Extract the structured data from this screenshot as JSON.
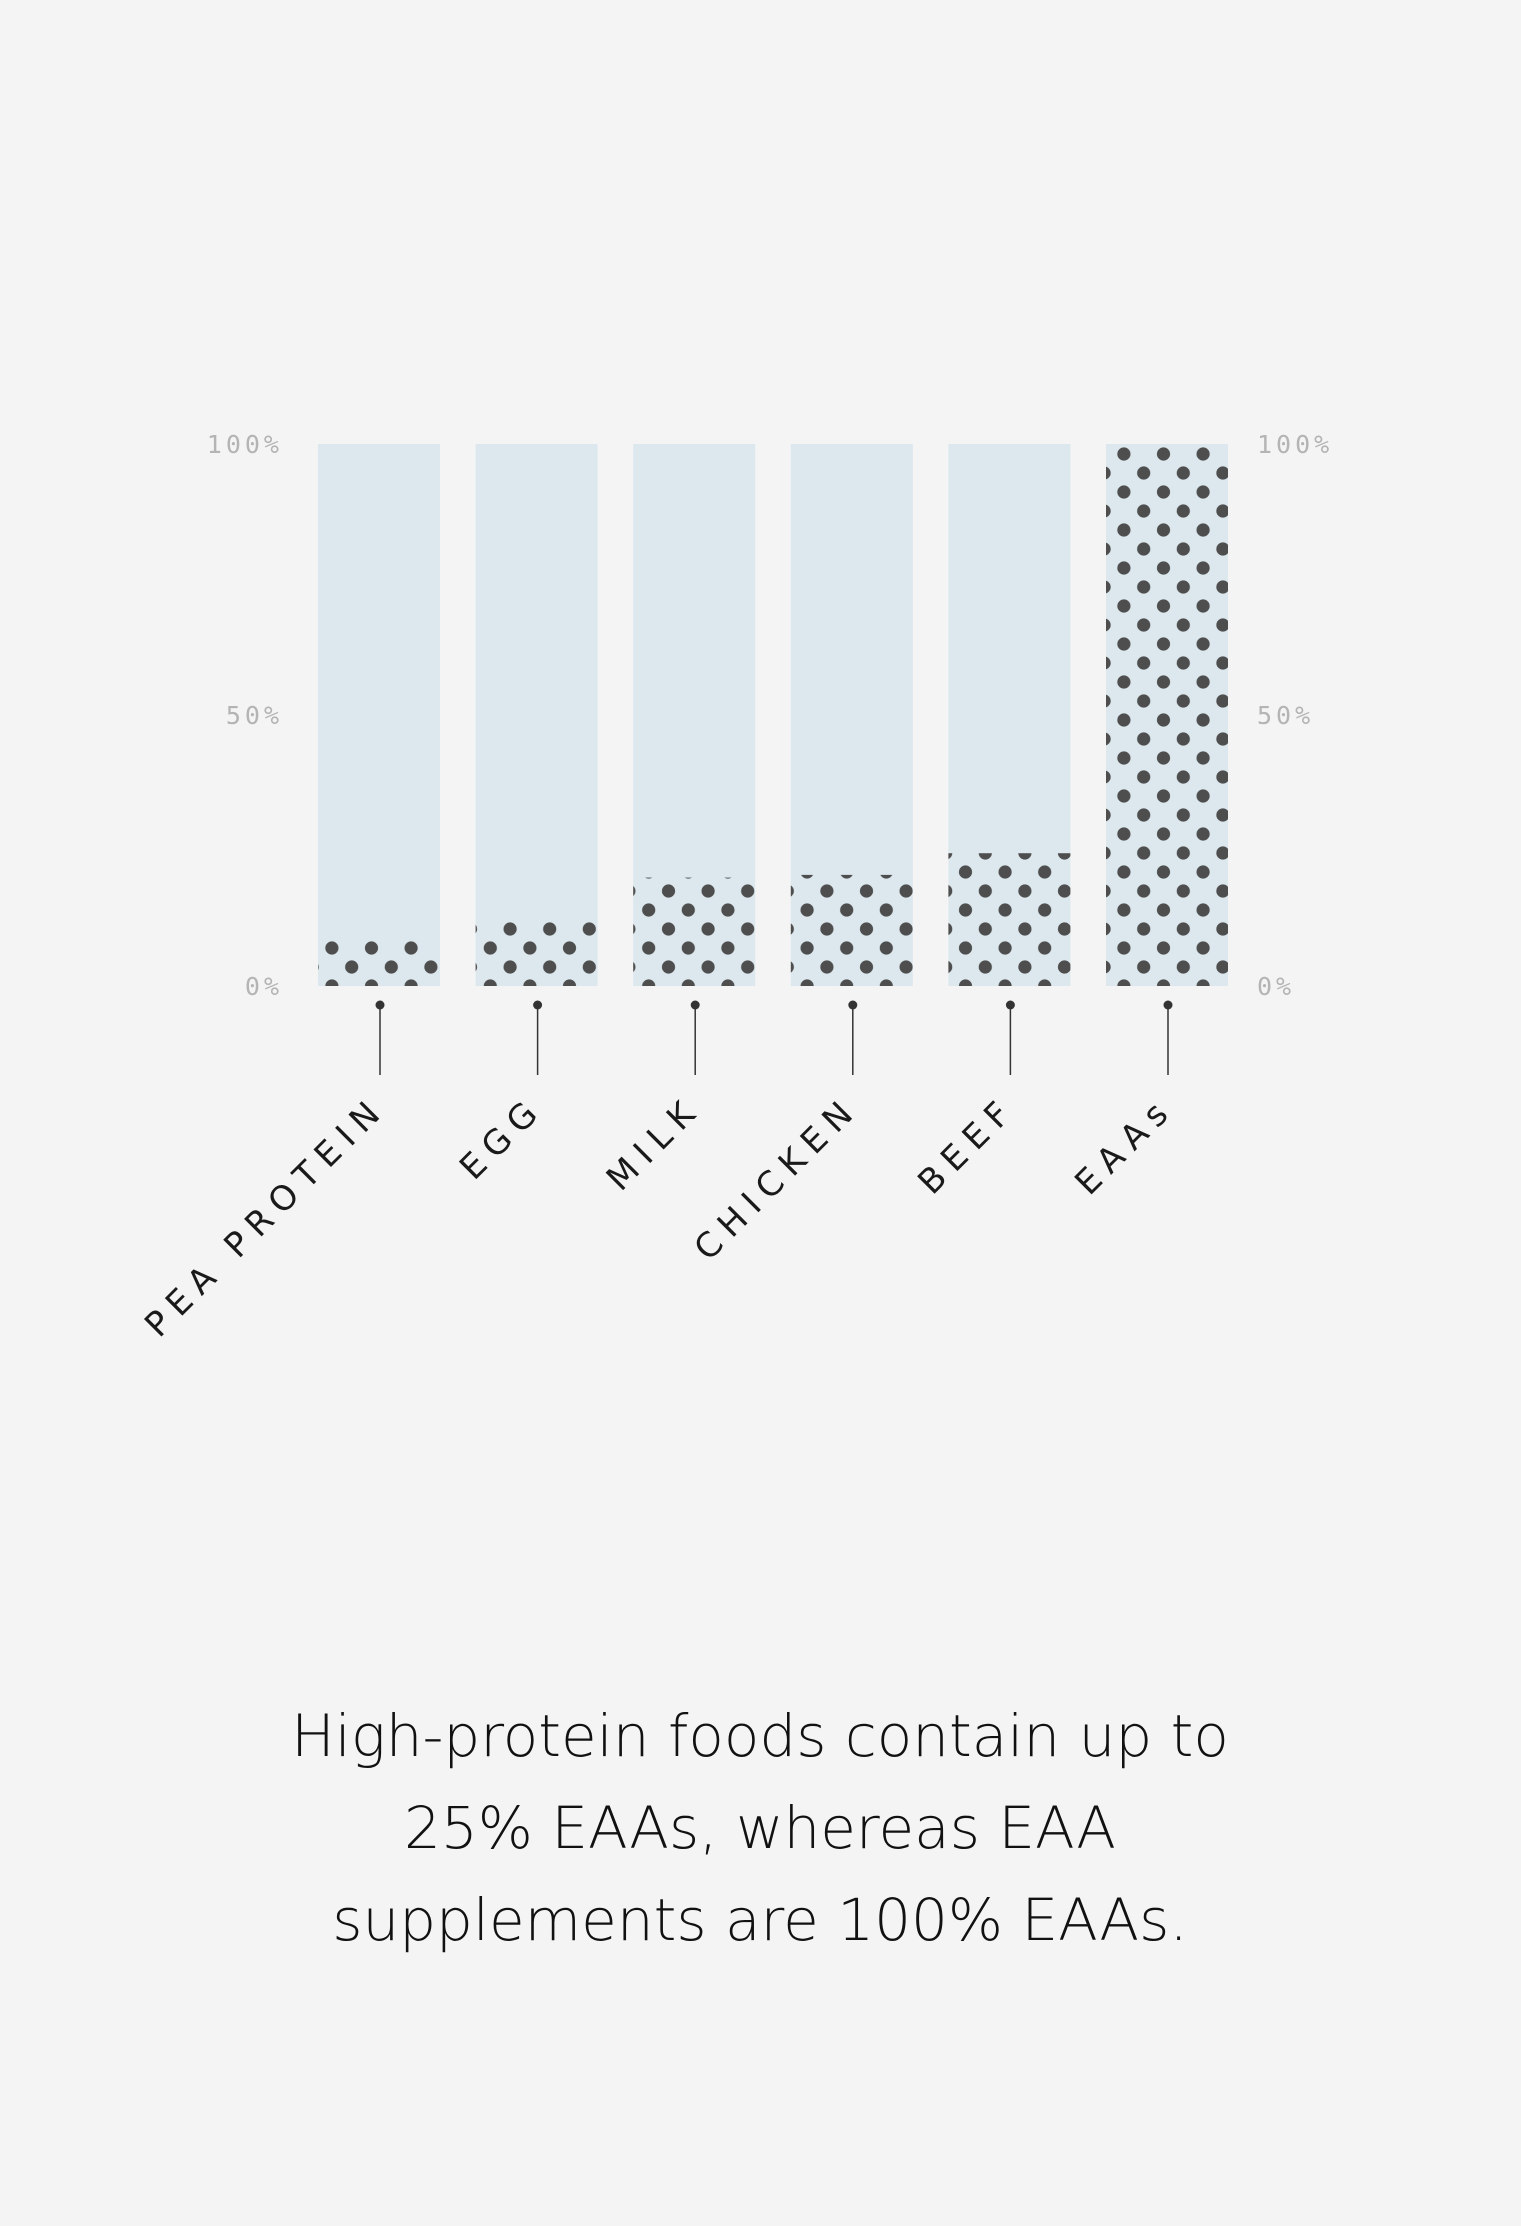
{
  "chart_data": {
    "type": "bar",
    "categories": [
      "PEA PROTEIN",
      "EGG",
      "MILK",
      "CHICKEN",
      "BEEF",
      "EAAs"
    ],
    "values": [
      9,
      12,
      20,
      20.5,
      24.5,
      100
    ],
    "unit": "%",
    "ylim": [
      0,
      100
    ],
    "yticks_left": [
      "0%",
      "50%",
      "100%"
    ],
    "yticks_right": [
      "0%",
      "50%",
      "100%"
    ],
    "ytick_values": [
      0,
      50,
      100
    ],
    "colors": {
      "background": "#f4f4f4",
      "bar_track": "#dce8ee",
      "dot": "#4e4e4e",
      "tick_text": "#b4b4b4",
      "label_text": "#1a1a1a",
      "connector": "#333333"
    },
    "fill_pattern": "dots",
    "grid": false
  },
  "caption": {
    "line1": "High-protein foods contain up to",
    "line2": "25% EAAs, whereas EAA",
    "line3": "supplements are 100% EAAs."
  }
}
